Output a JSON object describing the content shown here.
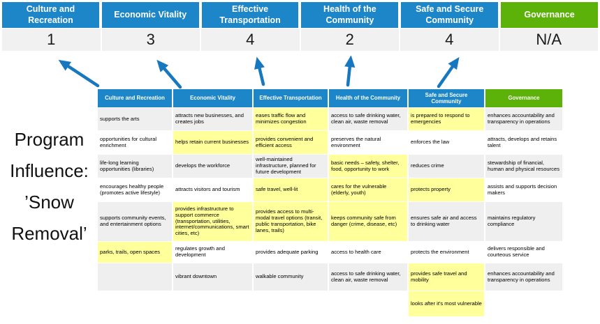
{
  "title": {
    "lines": [
      "Program",
      "Influence:",
      "’Snow",
      "Removal’"
    ]
  },
  "colors": {
    "header_blue": "#1d86c8",
    "governance_green": "#5cb208",
    "highlight_yellow": "#ffff9c",
    "row_stripe_gray": "#efefef",
    "score_bar_gray": "#f1f1f1",
    "arrow_blue": "#1878bf"
  },
  "priorities": [
    {
      "name": "Culture and Recreation",
      "score": "1"
    },
    {
      "name": "Economic Vitality",
      "score": "3"
    },
    {
      "name": "Effective Transportation",
      "score": "4"
    },
    {
      "name": "Health of the Community",
      "score": "2"
    },
    {
      "name": "Safe and Secure Community",
      "score": "4"
    },
    {
      "name": "Governance",
      "score": "N/A"
    }
  ],
  "matrix": {
    "headers": [
      {
        "label": "Culture and Recreation",
        "type": "blue"
      },
      {
        "label": "Economic Vitality",
        "type": "blue"
      },
      {
        "label": "Effective Transportation",
        "type": "blue"
      },
      {
        "label": "Health of the Community",
        "type": "blue"
      },
      {
        "label": "Safe and Secure Community",
        "type": "blue"
      },
      {
        "label": "Governance",
        "type": "green"
      }
    ],
    "rows": [
      {
        "cells": [
          {
            "text": "supports the arts",
            "highlight": false
          },
          {
            "text": "attracts new businesses, and creates jobs",
            "highlight": false
          },
          {
            "text": "eases traffic flow and minimizes congestion",
            "highlight": true
          },
          {
            "text": "access to safe drinking water, clean air, waste removal",
            "highlight": false
          },
          {
            "text": "is prepared to respond to emergencies",
            "highlight": true
          },
          {
            "text": "enhances accountability and transparency in operations",
            "highlight": false
          }
        ]
      },
      {
        "cells": [
          {
            "text": "opportunities for cultural enrichment",
            "highlight": false
          },
          {
            "text": "helps retain current businesses",
            "highlight": true
          },
          {
            "text": "provides convenient and efficient access",
            "highlight": true
          },
          {
            "text": "preserves the natural environment",
            "highlight": false
          },
          {
            "text": "enforces the law",
            "highlight": false
          },
          {
            "text": "attracts, develops and retains talent",
            "highlight": false
          }
        ]
      },
      {
        "cells": [
          {
            "text": "life-long learning opportunities (libraries)",
            "highlight": false
          },
          {
            "text": "develops the workforce",
            "highlight": false
          },
          {
            "text": "well-maintained infrastructure, planned for future development",
            "highlight": false
          },
          {
            "text": "basic needs – safety, shelter, food, opportunity to work",
            "highlight": true
          },
          {
            "text": "reduces crime",
            "highlight": false
          },
          {
            "text": "stewardship of financial, human and physical resources",
            "highlight": false
          }
        ]
      },
      {
        "cells": [
          {
            "text": "encourages healthy people (promotes active lifestyle)",
            "highlight": false
          },
          {
            "text": "attracts visitors and tourism",
            "highlight": false
          },
          {
            "text": "safe travel, well-lit",
            "highlight": true
          },
          {
            "text": "cares for the vulnerable (elderly, youth)",
            "highlight": true
          },
          {
            "text": "protects property",
            "highlight": true
          },
          {
            "text": "assists and supports decision makers",
            "highlight": false
          }
        ]
      },
      {
        "cells": [
          {
            "text": "supports community events, and entertainment options",
            "highlight": false
          },
          {
            "text": "provides infrastructure to support commerce (transportation, utilities, internet/communications, smart cities, etc)",
            "highlight": true
          },
          {
            "text": "provides access to multi-modal travel options (transit, public transportation, bike lanes, trails)",
            "highlight": true
          },
          {
            "text": "keeps community safe from danger (crime, disease, etc)",
            "highlight": true
          },
          {
            "text": "ensures safe air and access to drinking water",
            "highlight": false
          },
          {
            "text": "maintains regulatory compliance",
            "highlight": false
          }
        ]
      },
      {
        "cells": [
          {
            "text": "parks, trails, open spaces",
            "highlight": true
          },
          {
            "text": "regulates growth and development",
            "highlight": false
          },
          {
            "text": "provides adequate parking",
            "highlight": false
          },
          {
            "text": "access to health care",
            "highlight": false
          },
          {
            "text": "protects the environment",
            "highlight": false
          },
          {
            "text": "delivers responsible and courteous service",
            "highlight": false
          }
        ]
      },
      {
        "cells": [
          {
            "text": "",
            "highlight": false
          },
          {
            "text": "vibrant downtown",
            "highlight": false
          },
          {
            "text": "walkable community",
            "highlight": false
          },
          {
            "text": "access to safe drinking water, clean air, waste removal",
            "highlight": false
          },
          {
            "text": "provides safe travel and mobility",
            "highlight": true
          },
          {
            "text": "enhances accountability and transparency in operations",
            "highlight": false
          }
        ]
      },
      {
        "cells": [
          {
            "text": "",
            "highlight": false
          },
          {
            "text": "",
            "highlight": false
          },
          {
            "text": "",
            "highlight": false
          },
          {
            "text": "",
            "highlight": false
          },
          {
            "text": "looks after it's most vulnerable",
            "highlight": true
          },
          {
            "text": "",
            "highlight": false
          }
        ]
      }
    ]
  }
}
